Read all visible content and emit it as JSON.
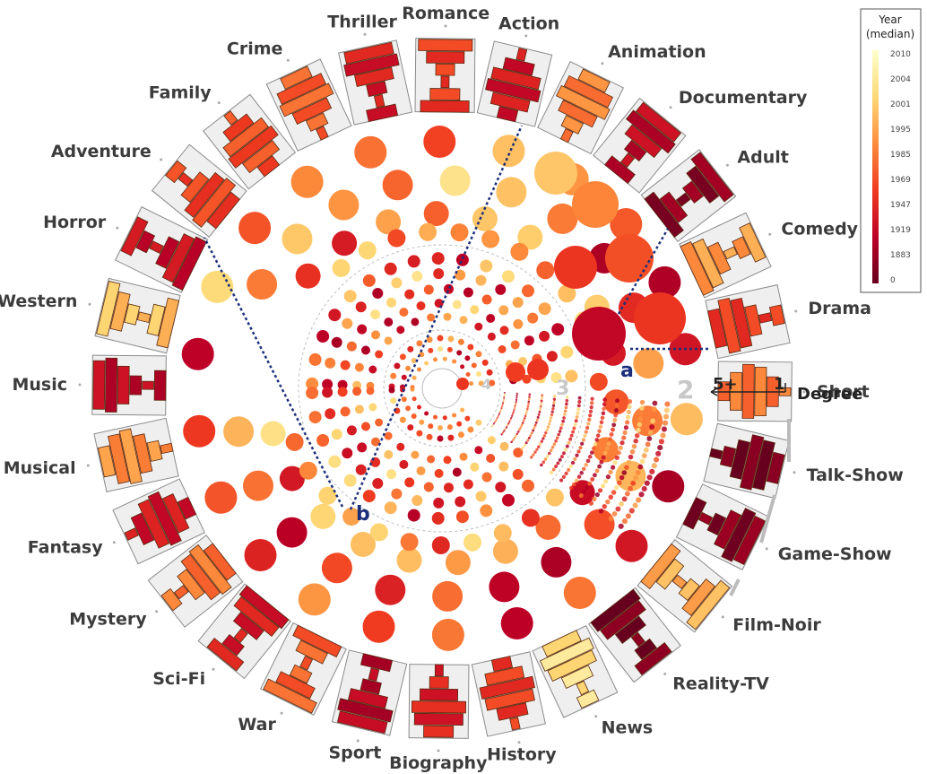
{
  "genres": [
    {
      "name": "Action",
      "level": 0.72
    },
    {
      "name": "Animation",
      "level": 0.42
    },
    {
      "name": "Documentary",
      "level": 0.78
    },
    {
      "name": "Adult",
      "level": 0.9
    },
    {
      "name": "Comedy",
      "level": 0.35
    },
    {
      "name": "Drama",
      "level": 0.6
    },
    {
      "name": "Short",
      "level": 0.45
    },
    {
      "name": "Talk-Show",
      "level": 0.96
    },
    {
      "name": "Game-Show",
      "level": 0.92
    },
    {
      "name": "Film-Noir",
      "level": 0.3
    },
    {
      "name": "Reality-TV",
      "level": 0.95
    },
    {
      "name": "News",
      "level": 0.15
    },
    {
      "name": "History",
      "level": 0.6
    },
    {
      "name": "Biography",
      "level": 0.68
    },
    {
      "name": "Sport",
      "level": 0.8
    },
    {
      "name": "War",
      "level": 0.5
    },
    {
      "name": "Sci-Fi",
      "level": 0.7
    },
    {
      "name": "Mystery",
      "level": 0.45
    },
    {
      "name": "Fantasy",
      "level": 0.72
    },
    {
      "name": "Musical",
      "level": 0.38
    },
    {
      "name": "Music",
      "level": 0.78
    },
    {
      "name": "Western",
      "level": 0.25
    },
    {
      "name": "Horror",
      "level": 0.75
    },
    {
      "name": "Adventure",
      "level": 0.58
    },
    {
      "name": "Family",
      "level": 0.55
    },
    {
      "name": "Crime",
      "level": 0.5
    },
    {
      "name": "Thriller",
      "level": 0.7
    },
    {
      "name": "Romance",
      "level": 0.6
    }
  ],
  "ring_labels": [
    "2",
    "3",
    "4"
  ],
  "callouts": {
    "a": "a",
    "b": "b"
  },
  "degree_axis": {
    "label": "Degree",
    "start": "5+",
    "end": "1"
  },
  "legend": {
    "title_line1": "Year",
    "title_line2": "(median)",
    "ticks": [
      "2010",
      "2004",
      "2001",
      "1995",
      "1985",
      "1969",
      "1947",
      "1919",
      "1883",
      "0"
    ]
  },
  "colors": {
    "panel": "#efefef",
    "stroke": "#555555",
    "dark_red": "#7a0628",
    "red": "#e31a1c",
    "orange": "#fd8d3c",
    "light_orange": "#fdb863",
    "pale_yellow": "#fff4a8",
    "leader": "#1d2f7a"
  }
}
